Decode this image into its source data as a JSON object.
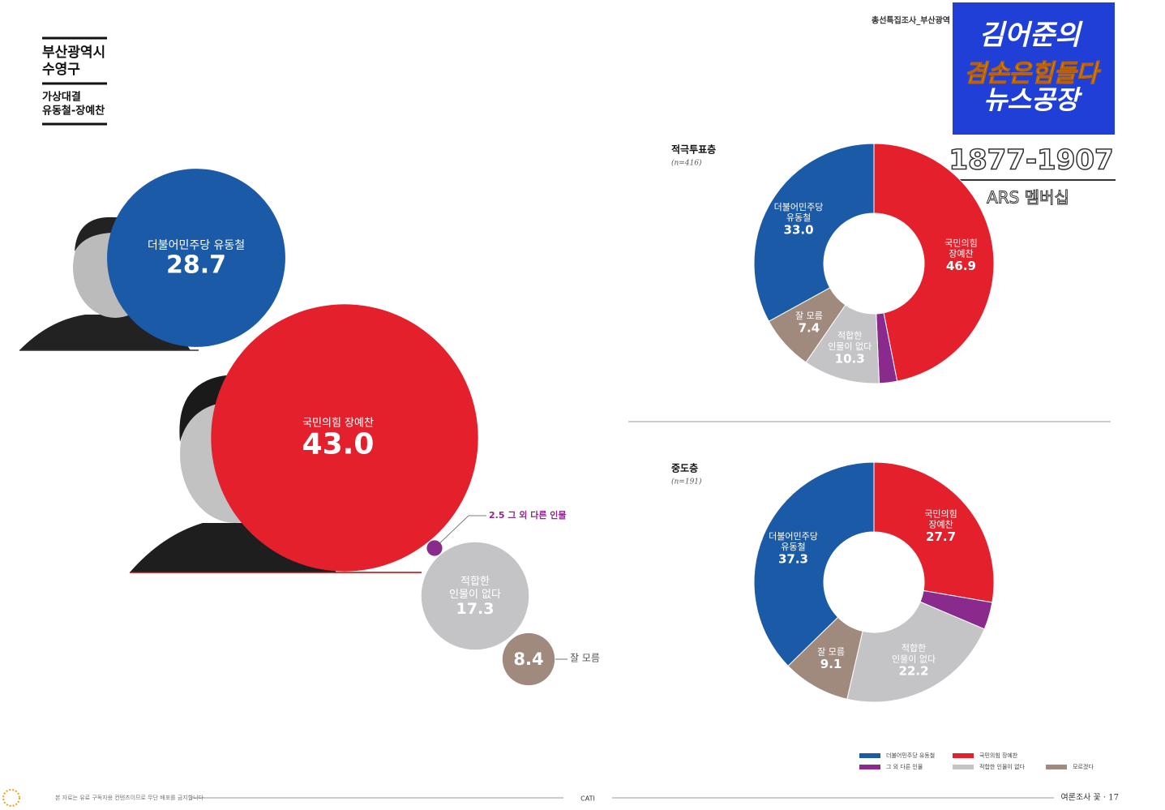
{
  "header": {
    "region": "부산광역시",
    "district": "수영구",
    "matchup": "가상대결",
    "candidates": "유동철-장예찬"
  },
  "running_head": "총선특집조사_부산광역",
  "overlay": {
    "line1": "김어준의",
    "line2": "겸손은힘들다",
    "line3": "뉴스공장",
    "phone": "1877-1907",
    "membership": "ARS 멤버십"
  },
  "chart_data": [
    {
      "type": "bubble",
      "categories": [
        [
          "더불어민주당 유동철"
        ],
        [
          "국민의힘 장예찬"
        ],
        [
          "그 외 다른 인물"
        ],
        [
          "적합한",
          "인물이 없다"
        ],
        [
          "잘 모름"
        ]
      ],
      "values": [
        28.7,
        43.0,
        2.5,
        17.3,
        8.4
      ],
      "value_labels": [
        null,
        "43.0",
        null,
        null,
        null
      ],
      "colors": [
        "#1a5aa6",
        "#e3202b",
        "#8a2a8c",
        "#c4c4c6",
        "#a08a7e"
      ]
    },
    {
      "type": "donut",
      "title": "적극투표층",
      "subtitle": "(n=416)",
      "categories": [
        [
          "국민의힘",
          "장예찬"
        ],
        null,
        [
          "적합한",
          "인물이 없다"
        ],
        [
          "잘 모름"
        ],
        [
          "더불어민주당",
          "유동철"
        ]
      ],
      "values": [
        46.9,
        2.4,
        10.3,
        7.4,
        33.0
      ],
      "value_labels": [
        null,
        null,
        null,
        null,
        "33.0"
      ],
      "colors": [
        "#e3202b",
        "#8a2a8c",
        "#c4c4c6",
        "#a08a7e",
        "#1a5aa6"
      ]
    },
    {
      "type": "donut",
      "title": "중도층",
      "subtitle": "(n=191)",
      "categories": [
        [
          "국민의힘",
          "장예찬"
        ],
        null,
        [
          "적합한",
          "인물이 없다"
        ],
        [
          "잘 모름"
        ],
        [
          "더불어민주당",
          "유동철"
        ]
      ],
      "values": [
        27.7,
        3.7,
        22.2,
        9.1,
        37.3
      ],
      "value_labels": [
        null,
        null,
        null,
        null,
        null
      ],
      "colors": [
        "#e3202b",
        "#8a2a8c",
        "#c4c4c6",
        "#a08a7e",
        "#1a5aa6"
      ]
    }
  ],
  "legend": [
    {
      "name": "더불어민주당 유동철",
      "color": "#1a5aa6"
    },
    {
      "name": "국민의힘 장예찬",
      "color": "#e3202b"
    },
    {
      "name": "그 외 다른 인물",
      "color": "#8a2a8c"
    },
    {
      "name": "적합한 인물이 없다",
      "color": "#c4c4c6"
    },
    {
      "name": "모르겠다",
      "color": "#a08a7e"
    }
  ],
  "footer": {
    "notice": "본 자료는 유료 구독자용 컨텐츠이므로 무단 배포를 금지합니다",
    "method": "CATI",
    "page": "여론조사 꽃 · 17"
  }
}
